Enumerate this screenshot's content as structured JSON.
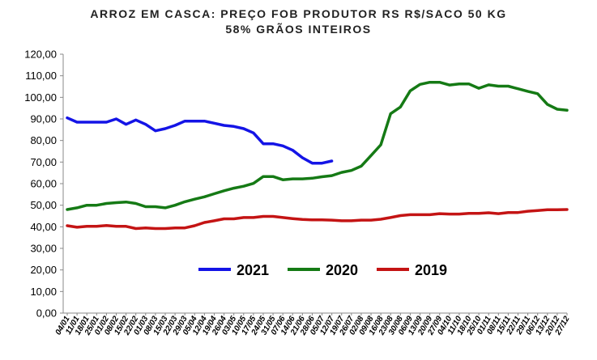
{
  "chart_data": {
    "type": "line",
    "title": "ARROZ EM CASCA: PREÇO FOB PRODUTOR RS R$/SACO 50 KG",
    "subtitle": "58% GRÃOS INTEIROS",
    "ylim": [
      0,
      120
    ],
    "yticks": [
      "0,00",
      "10,00",
      "20,00",
      "30,00",
      "40,00",
      "50,00",
      "60,00",
      "70,00",
      "80,00",
      "90,00",
      "100,00",
      "110,00",
      "120,00"
    ],
    "grid": false,
    "legend_position": "center",
    "categories": [
      "04/01",
      "11/01",
      "18/01",
      "25/01",
      "01/02",
      "08/02",
      "15/02",
      "22/02",
      "01/03",
      "08/03",
      "15/03",
      "22/03",
      "29/03",
      "05/04",
      "12/04",
      "19/04",
      "26/04",
      "03/05",
      "10/05",
      "17/05",
      "24/05",
      "31/05",
      "07/06",
      "14/06",
      "21/06",
      "28/06",
      "05/07",
      "12/07",
      "19/07",
      "26/07",
      "02/08",
      "09/08",
      "16/08",
      "23/08",
      "30/08",
      "06/09",
      "13/09",
      "20/09",
      "27/09",
      "04/10",
      "11/10",
      "18/10",
      "25/10",
      "01/11",
      "08/11",
      "15/11",
      "22/11",
      "29/11",
      "06/12",
      "13/12",
      "20/12",
      "27/12"
    ],
    "series": [
      {
        "name": "2021",
        "color": "#1414e6",
        "values": [
          90.5,
          88.5,
          88.5,
          88.5,
          88.5,
          90,
          87.5,
          89.5,
          87.5,
          84.5,
          85.5,
          87,
          89,
          89,
          89,
          88,
          87,
          86.5,
          85.5,
          83.5,
          78.5,
          78.5,
          77.5,
          75.5,
          72,
          69.5,
          69.5,
          70.5,
          null,
          null,
          null,
          null,
          null,
          null,
          null,
          null,
          null,
          null,
          null,
          null,
          null,
          null,
          null,
          null,
          null,
          null,
          null,
          null,
          null,
          null,
          null,
          null
        ]
      },
      {
        "name": "2020",
        "color": "#157a15",
        "values": [
          48,
          48.8,
          50,
          50,
          50.8,
          51.2,
          51.5,
          50.8,
          49.3,
          49.3,
          48.8,
          50,
          51.6,
          52.8,
          53.9,
          55.3,
          56.7,
          57.9,
          58.8,
          60.1,
          63.3,
          63.3,
          61.8,
          62.2,
          62.2,
          62.5,
          63.2,
          63.7,
          65.2,
          66.1,
          68.1,
          73,
          78,
          92.4,
          95.5,
          103,
          106,
          107,
          107,
          105.7,
          106.2,
          106.2,
          104.2,
          105.8,
          105.2,
          105.2,
          104,
          102.8,
          101.7,
          96.7,
          94.5,
          94
        ]
      },
      {
        "name": "2019",
        "color": "#c41414",
        "values": [
          40.5,
          39.8,
          40.2,
          40.2,
          40.6,
          40.2,
          40.2,
          39.2,
          39.5,
          39.2,
          39.2,
          39.5,
          39.5,
          40.5,
          42,
          42.8,
          43.7,
          43.7,
          44.3,
          44.3,
          44.8,
          44.8,
          44.3,
          43.8,
          43.4,
          43.2,
          43.2,
          43.1,
          42.8,
          42.8,
          43.1,
          43.1,
          43.5,
          44.3,
          45.2,
          45.6,
          45.6,
          45.6,
          46.1,
          45.9,
          45.9,
          46.2,
          46.2,
          46.5,
          46.1,
          46.6,
          46.6,
          47.2,
          47.5,
          47.9,
          47.9,
          48
        ]
      }
    ]
  }
}
